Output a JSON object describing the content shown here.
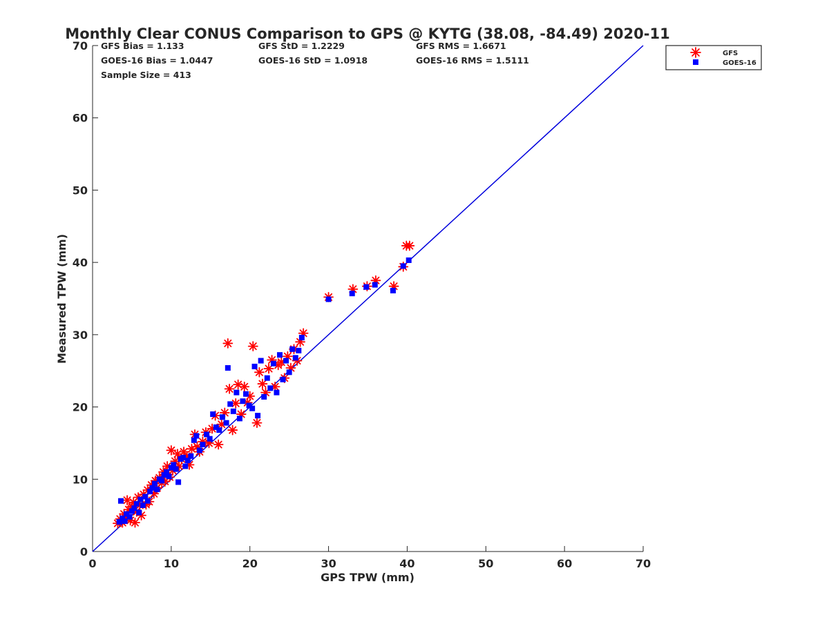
{
  "chart_data": {
    "type": "scatter",
    "title": "Monthly Clear CONUS Comparison to GPS @ KYTG (38.08, -84.49) 2020-11",
    "xlabel": "GPS TPW (mm)",
    "ylabel": "Measured TPW (mm)",
    "xlim": [
      0,
      70
    ],
    "ylim": [
      0,
      70
    ],
    "xticks": [
      0,
      10,
      20,
      30,
      40,
      50,
      60,
      70
    ],
    "yticks": [
      0,
      10,
      20,
      30,
      40,
      50,
      60,
      70
    ],
    "grid": false,
    "legend_position": "top-right",
    "stats": [
      "GFS Bias = 1.133",
      "GFS StD = 1.2229",
      "GFS RMS = 1.6671",
      "GOES-16 Bias = 1.0447",
      "GOES-16 StD = 1.0918",
      "GOES-16 RMS = 1.5111",
      "Sample Size = 413"
    ],
    "reference_line": {
      "x": [
        0,
        70
      ],
      "y": [
        0,
        70
      ],
      "color": "#0000dd"
    },
    "series": [
      {
        "name": "GFS",
        "marker": "asterisk",
        "color": "#ff0000",
        "points": [
          [
            3.2,
            3.9
          ],
          [
            3.5,
            4.5
          ],
          [
            3.8,
            4.0
          ],
          [
            4.0,
            5.2
          ],
          [
            4.2,
            4.6
          ],
          [
            4.4,
            7.1
          ],
          [
            4.6,
            5.8
          ],
          [
            4.8,
            4.3
          ],
          [
            5.0,
            6.2
          ],
          [
            5.2,
            6.8
          ],
          [
            5.4,
            4.0
          ],
          [
            5.6,
            5.5
          ],
          [
            5.8,
            7.5
          ],
          [
            6.0,
            6.4
          ],
          [
            6.2,
            5.0
          ],
          [
            6.5,
            7.9
          ],
          [
            6.8,
            6.5
          ],
          [
            7.0,
            8.5
          ],
          [
            7.2,
            6.9
          ],
          [
            7.5,
            9.2
          ],
          [
            7.8,
            8.0
          ],
          [
            8.0,
            9.8
          ],
          [
            8.2,
            8.8
          ],
          [
            8.5,
            10.2
          ],
          [
            8.8,
            9.5
          ],
          [
            9.0,
            11.0
          ],
          [
            9.2,
            9.7
          ],
          [
            9.5,
            11.8
          ],
          [
            9.8,
            10.3
          ],
          [
            10.0,
            14.0
          ],
          [
            10.2,
            11.2
          ],
          [
            10.5,
            12.5
          ],
          [
            10.8,
            13.5
          ],
          [
            11.0,
            11.8
          ],
          [
            11.3,
            12.8
          ],
          [
            11.6,
            13.8
          ],
          [
            12.0,
            13.2
          ],
          [
            12.3,
            12.0
          ],
          [
            12.6,
            14.2
          ],
          [
            13.0,
            16.2
          ],
          [
            13.3,
            14.5
          ],
          [
            13.6,
            13.8
          ],
          [
            14.0,
            15.2
          ],
          [
            14.4,
            16.5
          ],
          [
            14.8,
            15.0
          ],
          [
            15.2,
            17.0
          ],
          [
            15.6,
            18.8
          ],
          [
            16.0,
            14.8
          ],
          [
            16.4,
            17.6
          ],
          [
            16.8,
            19.2
          ],
          [
            17.2,
            28.8
          ],
          [
            17.4,
            22.5
          ],
          [
            17.8,
            16.8
          ],
          [
            18.2,
            20.5
          ],
          [
            18.5,
            23.1
          ],
          [
            18.9,
            19.0
          ],
          [
            19.3,
            22.8
          ],
          [
            19.7,
            20.6
          ],
          [
            20.0,
            21.5
          ],
          [
            20.4,
            28.4
          ],
          [
            20.9,
            17.8
          ],
          [
            21.2,
            24.8
          ],
          [
            21.6,
            23.2
          ],
          [
            22.0,
            22.0
          ],
          [
            22.4,
            25.3
          ],
          [
            22.8,
            26.5
          ],
          [
            23.2,
            22.8
          ],
          [
            23.6,
            25.8
          ],
          [
            24.0,
            26.2
          ],
          [
            24.4,
            24.0
          ],
          [
            24.8,
            27.0
          ],
          [
            25.2,
            25.4
          ],
          [
            25.6,
            28.0
          ],
          [
            26.0,
            26.4
          ],
          [
            26.4,
            29.0
          ],
          [
            26.8,
            30.2
          ],
          [
            30.0,
            35.2
          ],
          [
            33.1,
            36.3
          ],
          [
            34.9,
            36.7
          ],
          [
            36.0,
            37.5
          ],
          [
            38.3,
            36.7
          ],
          [
            39.5,
            39.4
          ],
          [
            39.9,
            42.3
          ],
          [
            40.3,
            42.3
          ]
        ]
      },
      {
        "name": "GOES-16",
        "marker": "square",
        "color": "#0000ff",
        "points": [
          [
            3.6,
            7.0
          ],
          [
            3.4,
            4.1
          ],
          [
            3.8,
            4.6
          ],
          [
            4.1,
            4.2
          ],
          [
            4.3,
            5.2
          ],
          [
            4.7,
            4.8
          ],
          [
            5.0,
            5.6
          ],
          [
            5.3,
            6.0
          ],
          [
            5.6,
            6.6
          ],
          [
            5.9,
            5.4
          ],
          [
            6.1,
            7.2
          ],
          [
            6.4,
            6.4
          ],
          [
            6.7,
            7.6
          ],
          [
            7.0,
            7.0
          ],
          [
            7.3,
            8.3
          ],
          [
            7.6,
            8.8
          ],
          [
            7.9,
            9.4
          ],
          [
            8.2,
            8.6
          ],
          [
            8.5,
            10.0
          ],
          [
            8.8,
            9.8
          ],
          [
            9.1,
            10.6
          ],
          [
            9.4,
            11.0
          ],
          [
            9.7,
            10.4
          ],
          [
            10.0,
            11.6
          ],
          [
            10.3,
            12.0
          ],
          [
            10.6,
            11.4
          ],
          [
            10.9,
            9.6
          ],
          [
            11.2,
            12.8
          ],
          [
            11.5,
            13.0
          ],
          [
            11.8,
            11.8
          ],
          [
            12.1,
            12.6
          ],
          [
            12.5,
            13.2
          ],
          [
            12.9,
            15.4
          ],
          [
            13.2,
            16.0
          ],
          [
            13.6,
            14.0
          ],
          [
            14.0,
            14.8
          ],
          [
            14.5,
            16.2
          ],
          [
            14.9,
            15.6
          ],
          [
            15.3,
            19.0
          ],
          [
            15.7,
            17.2
          ],
          [
            16.1,
            16.8
          ],
          [
            16.5,
            18.6
          ],
          [
            17.0,
            17.8
          ],
          [
            17.2,
            25.4
          ],
          [
            17.5,
            20.4
          ],
          [
            17.9,
            19.4
          ],
          [
            18.3,
            22.0
          ],
          [
            18.7,
            18.4
          ],
          [
            19.1,
            20.8
          ],
          [
            19.5,
            21.8
          ],
          [
            19.9,
            20.2
          ],
          [
            20.3,
            19.8
          ],
          [
            20.6,
            25.6
          ],
          [
            21.0,
            18.8
          ],
          [
            21.4,
            26.4
          ],
          [
            21.8,
            21.4
          ],
          [
            22.2,
            24.0
          ],
          [
            22.6,
            22.6
          ],
          [
            23.0,
            26.0
          ],
          [
            23.4,
            22.0
          ],
          [
            23.8,
            27.2
          ],
          [
            24.2,
            23.8
          ],
          [
            24.6,
            26.4
          ],
          [
            25.0,
            24.8
          ],
          [
            25.4,
            28.0
          ],
          [
            25.8,
            26.8
          ],
          [
            26.2,
            27.8
          ],
          [
            26.6,
            29.6
          ],
          [
            30.0,
            34.9
          ],
          [
            33.0,
            35.7
          ],
          [
            34.8,
            36.6
          ],
          [
            35.9,
            36.9
          ],
          [
            38.2,
            36.1
          ],
          [
            39.5,
            39.5
          ],
          [
            40.2,
            40.3
          ]
        ]
      }
    ]
  }
}
